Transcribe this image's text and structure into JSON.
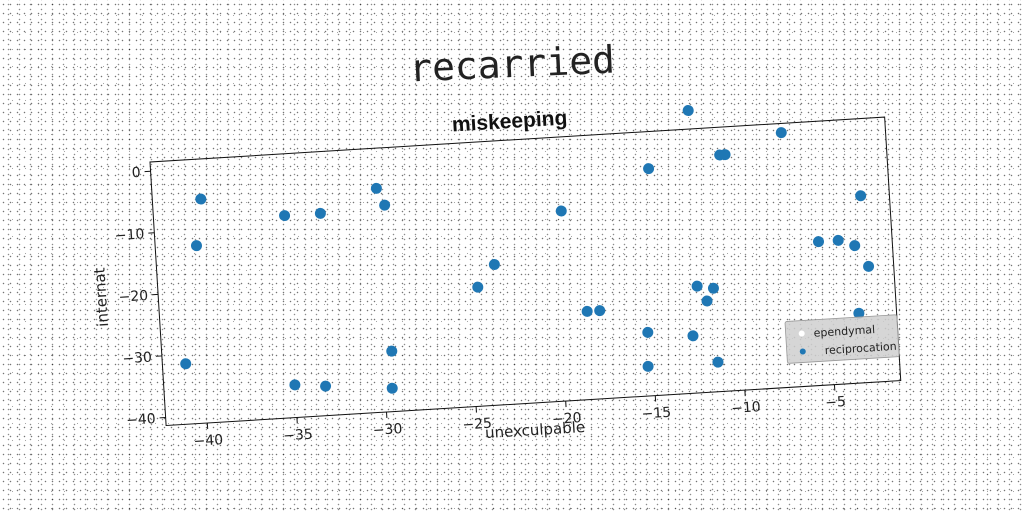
{
  "page_title": "recarried",
  "chart_data": {
    "type": "scatter",
    "title": "miskeeping",
    "xlabel": "unexculpable",
    "ylabel": "internat",
    "xlim": [
      -42.3,
      -1.3
    ],
    "ylim": [
      -41.3,
      1.5
    ],
    "xticks": [
      -40,
      -35,
      -30,
      -25,
      -20,
      -15,
      -10,
      -5
    ],
    "yticks": [
      0,
      -10,
      -20,
      -30,
      -40
    ],
    "grid": false,
    "legend_position": "bottom-right",
    "series": [
      {
        "name": "ependymal",
        "color": "#ffffff",
        "x": [],
        "y": []
      },
      {
        "name": "reciprocation",
        "color": "#1f77b4",
        "x": [
          -39.6,
          -40.0,
          -41.0,
          -35.0,
          -33.0,
          -29.8,
          -29.4,
          -35.0,
          -33.3,
          -29.6,
          -29.5,
          -24.5,
          -23.5,
          -19.6,
          -18.5,
          -17.8,
          -15.3,
          -15.2,
          -14.6,
          -12.7,
          -12.2,
          -10.6,
          -10.3,
          -11.4,
          -11.4,
          -11.8,
          -12.3,
          -7.1,
          -5.4,
          -4.3,
          -3.4,
          -3.4,
          -2.9,
          -2.7
        ],
        "y": [
          -5.0,
          -12.5,
          -31.5,
          -8.5,
          -8.5,
          -5.0,
          -7.8,
          -36.0,
          -36.5,
          -37.5,
          -31.5,
          -22.0,
          -18.5,
          -10.5,
          -27.0,
          -27.0,
          -36.5,
          -31.0,
          -4.5,
          -32.0,
          4.5,
          -3.0,
          -3.0,
          -36.5,
          -24.5,
          -26.5,
          -24.0,
          0.0,
          -18.0,
          -18.0,
          -19.0,
          -30.0,
          -11.0,
          -22.5
        ]
      }
    ]
  }
}
